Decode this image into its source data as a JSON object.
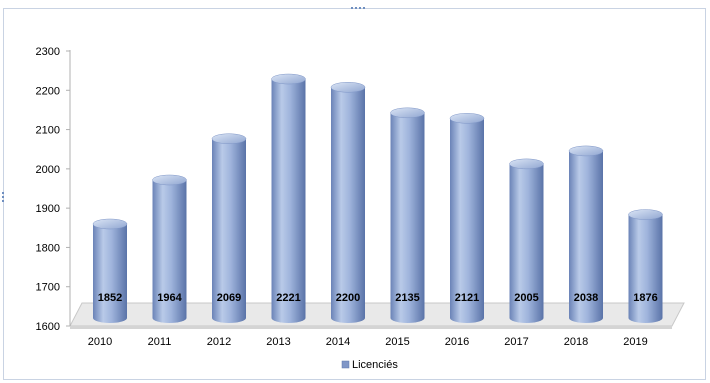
{
  "chart_data": {
    "type": "bar",
    "categories": [
      "2010",
      "2011",
      "2012",
      "2013",
      "2014",
      "2015",
      "2016",
      "2017",
      "2018",
      "2019"
    ],
    "series": [
      {
        "name": "Licenciés",
        "values": [
          1852,
          1964,
          2069,
          2221,
          2200,
          2135,
          2121,
          2005,
          2038,
          1876
        ]
      }
    ],
    "title": "",
    "xlabel": "",
    "ylabel": "",
    "ylim": [
      1600,
      2300
    ],
    "yticks": [
      "1600",
      "1700",
      "1800",
      "1900",
      "2000",
      "2100",
      "2200",
      "2300"
    ],
    "grid": false,
    "legend_position": "bottom",
    "bar_style": "3d-cylinder",
    "colors": {
      "bar_light": "#c7d5ec",
      "bar_mid": "#8fa7d3",
      "bar_dark": "#5f79ad",
      "floor": "#e6e6e6",
      "legend_swatch": "#7f96c7",
      "frame_border": "#c9d3e3",
      "top_handle": "#6f8fc0"
    }
  }
}
